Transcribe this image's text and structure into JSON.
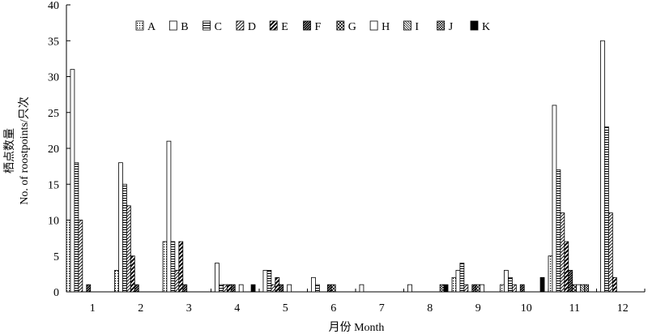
{
  "chart_data": {
    "type": "bar",
    "xlabel": "月份 Month",
    "ylabel_cn": "栖点数量",
    "ylabel_en": "No. of roostpoints/只次",
    "ylim": [
      0,
      40
    ],
    "yticks": [
      0,
      5,
      10,
      15,
      20,
      25,
      30,
      35,
      40
    ],
    "categories": [
      "1",
      "2",
      "3",
      "4",
      "5",
      "6",
      "7",
      "8",
      "9",
      "10",
      "11",
      "12"
    ],
    "legend_position": "top",
    "series": [
      {
        "name": "A",
        "pattern": "dots",
        "values": [
          10,
          3,
          7,
          0,
          0,
          0,
          0,
          0,
          2,
          1,
          5,
          0
        ]
      },
      {
        "name": "B",
        "pattern": "blank",
        "values": [
          31,
          18,
          21,
          4,
          3,
          2,
          1,
          1,
          3,
          3,
          26,
          35
        ]
      },
      {
        "name": "C",
        "pattern": "hlines",
        "values": [
          18,
          15,
          7,
          1,
          3,
          1,
          0,
          0,
          4,
          2,
          17,
          23
        ]
      },
      {
        "name": "D",
        "pattern": "diag",
        "values": [
          10,
          12,
          3,
          1,
          1,
          0,
          0,
          0,
          1,
          1,
          11,
          11
        ]
      },
      {
        "name": "E",
        "pattern": "bold-diag",
        "values": [
          0,
          5,
          7,
          1,
          2,
          0,
          0,
          0,
          0,
          0,
          7,
          2
        ]
      },
      {
        "name": "F",
        "pattern": "dense-diag",
        "values": [
          1,
          1,
          1,
          1,
          1,
          1,
          0,
          0,
          1,
          1,
          3,
          0
        ]
      },
      {
        "name": "G",
        "pattern": "cross-diag",
        "values": [
          0,
          0,
          0,
          0,
          0,
          1,
          0,
          0,
          1,
          0,
          1,
          0
        ]
      },
      {
        "name": "H",
        "pattern": "blank",
        "values": [
          0,
          0,
          0,
          1,
          1,
          0,
          0,
          0,
          1,
          0,
          1,
          0
        ]
      },
      {
        "name": "I",
        "pattern": "fine-diag",
        "values": [
          0,
          0,
          0,
          0,
          0,
          0,
          0,
          0,
          0,
          0,
          1,
          0
        ]
      },
      {
        "name": "J",
        "pattern": "checker",
        "values": [
          0,
          0,
          0,
          0,
          0,
          0,
          0,
          1,
          0,
          0,
          1,
          0
        ]
      },
      {
        "name": "K",
        "pattern": "solid",
        "values": [
          0,
          0,
          0,
          1,
          0,
          0,
          0,
          1,
          0,
          2,
          0,
          0
        ]
      }
    ]
  }
}
